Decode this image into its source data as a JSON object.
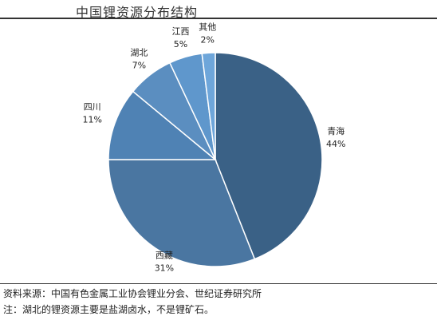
{
  "chart_data": {
    "type": "pie",
    "title": "中国锂资源分布结构",
    "slices": [
      {
        "label": "青海",
        "value": 44,
        "pct_label": "44%"
      },
      {
        "label": "西藏",
        "value": 31,
        "pct_label": "31%"
      },
      {
        "label": "四川",
        "value": 11,
        "pct_label": "11%"
      },
      {
        "label": "湖北",
        "value": 7,
        "pct_label": "7%"
      },
      {
        "label": "江西",
        "value": 5,
        "pct_label": "5%"
      },
      {
        "label": "其他",
        "value": 2,
        "pct_label": "2%"
      }
    ],
    "colors": [
      "#3a6186",
      "#4a76a1",
      "#4f82b4",
      "#5b8ec0",
      "#5f97cc",
      "#6ea6da"
    ]
  },
  "footer": {
    "source": "资料来源：中国有色金属工业协会锂业分会、世纪证券研究所",
    "note": "注：湖北的锂资源主要是盐湖卤水，不是锂矿石。"
  }
}
